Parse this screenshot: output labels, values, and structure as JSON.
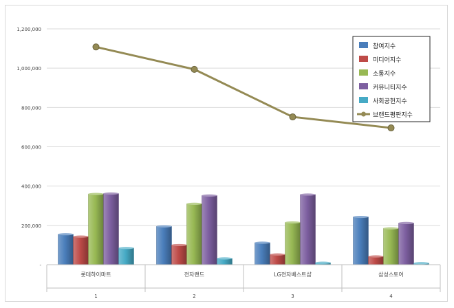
{
  "chart_data": {
    "type": "bar",
    "title": "",
    "xlabel": "",
    "ylabel": "",
    "ylim": [
      0,
      1200000
    ],
    "y_ticks": [
      {
        "value": 0,
        "label": "-"
      },
      {
        "value": 200000,
        "label": "200,000"
      },
      {
        "value": 400000,
        "label": "400,000"
      },
      {
        "value": 600000,
        "label": "600,000"
      },
      {
        "value": 800000,
        "label": "800,000"
      },
      {
        "value": 1000000,
        "label": "1,000,000"
      },
      {
        "value": 1200000,
        "label": "1,200,000"
      }
    ],
    "categories": [
      "롯데하이마트",
      "전자랜드",
      "LG전자베스트샵",
      "삼성스토어"
    ],
    "category_numbers": [
      "1",
      "2",
      "3",
      "4"
    ],
    "series": [
      {
        "name": "참여지수",
        "kind": "bar",
        "color": "#4a7ebb",
        "values": [
          155000,
          195000,
          112000,
          243000
        ]
      },
      {
        "name": "미디어지수",
        "kind": "bar",
        "color": "#be4b48",
        "values": [
          143000,
          100000,
          52000,
          42000
        ]
      },
      {
        "name": "소통지수",
        "kind": "bar",
        "color": "#98b954",
        "values": [
          360000,
          310000,
          215000,
          185000
        ]
      },
      {
        "name": "커뮤니티지수",
        "kind": "bar",
        "color": "#7d5fa0",
        "values": [
          362000,
          352000,
          357000,
          212000
        ]
      },
      {
        "name": "사회공헌지수",
        "kind": "bar",
        "color": "#46aac5",
        "values": [
          85000,
          32000,
          10000,
          8000
        ]
      },
      {
        "name": "브랜드평판지수",
        "kind": "line",
        "color": "#948a54",
        "values": [
          1108000,
          994000,
          752000,
          696000
        ]
      }
    ],
    "grid": true,
    "legend_position": "top-right"
  }
}
